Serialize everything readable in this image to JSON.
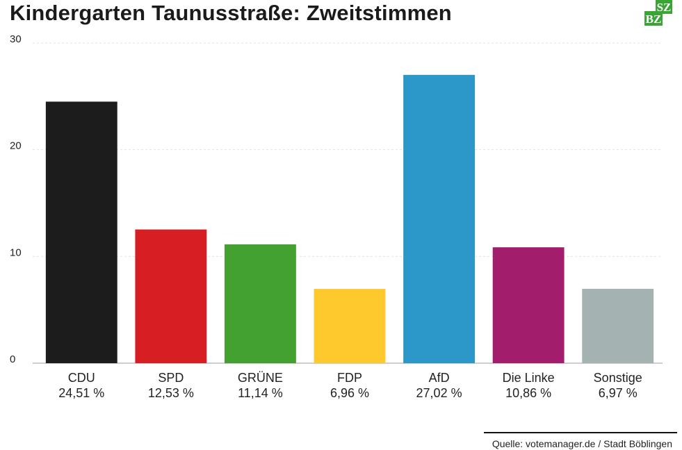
{
  "chart_data": {
    "type": "bar",
    "title": "Kindergarten Taunusstraße: Zweitstimmen",
    "ylim": [
      0,
      30
    ],
    "yticks": [
      0,
      10,
      20,
      30
    ],
    "grid": true,
    "categories": [
      "CDU",
      "SPD",
      "GRÜNE",
      "FDP",
      "AfD",
      "Die Linke",
      "Sonstige"
    ],
    "values": [
      24.51,
      12.53,
      11.14,
      6.96,
      27.02,
      10.86,
      6.97
    ],
    "value_labels": [
      "24,51 %",
      "12,53 %",
      "11,14 %",
      "6,96 %",
      "27,02 %",
      "10,86 %",
      "6,97 %"
    ],
    "colors": [
      "#1c1c1c",
      "#d71f23",
      "#43a22f",
      "#fdc92c",
      "#2c97c9",
      "#a21d6c",
      "#a4b2b2"
    ]
  },
  "logo": {
    "text_top": "SZ",
    "text_bottom": "BZ",
    "color": "#3aa535"
  },
  "source": "Quelle: votemanager.de / Stadt Böblingen"
}
